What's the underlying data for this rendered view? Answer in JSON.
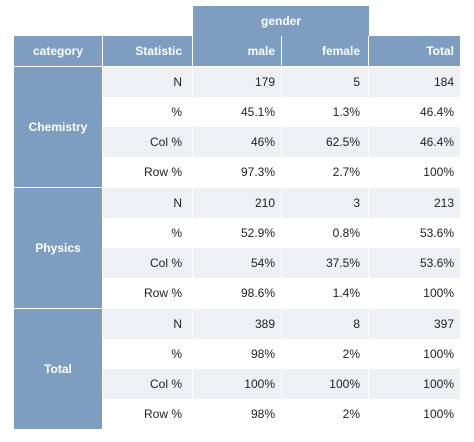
{
  "header": {
    "span_label": "gender",
    "columns": {
      "category": "category",
      "statistic": "Statistic",
      "male": "male",
      "female": "female",
      "total": "Total"
    }
  },
  "groups": [
    {
      "label": "Chemistry",
      "rows": [
        {
          "stat": "N",
          "male": "179",
          "female": "5",
          "total": "184"
        },
        {
          "stat": "%",
          "male": "45.1%",
          "female": "1.3%",
          "total": "46.4%"
        },
        {
          "stat": "Col %",
          "male": "46%",
          "female": "62.5%",
          "total": "46.4%"
        },
        {
          "stat": "Row %",
          "male": "97.3%",
          "female": "2.7%",
          "total": "100%"
        }
      ]
    },
    {
      "label": "Physics",
      "rows": [
        {
          "stat": "N",
          "male": "210",
          "female": "3",
          "total": "213"
        },
        {
          "stat": "%",
          "male": "52.9%",
          "female": "0.8%",
          "total": "53.6%"
        },
        {
          "stat": "Col %",
          "male": "54%",
          "female": "37.5%",
          "total": "53.6%"
        },
        {
          "stat": "Row %",
          "male": "98.6%",
          "female": "1.4%",
          "total": "100%"
        }
      ]
    },
    {
      "label": "Total",
      "rows": [
        {
          "stat": "N",
          "male": "389",
          "female": "8",
          "total": "397"
        },
        {
          "stat": "%",
          "male": "98%",
          "female": "2%",
          "total": "100%"
        },
        {
          "stat": "Col %",
          "male": "100%",
          "female": "100%",
          "total": "100%"
        },
        {
          "stat": "Row %",
          "male": "98%",
          "female": "2%",
          "total": "100%"
        }
      ]
    }
  ],
  "colors": {
    "header_bg": "#7d9ec0",
    "stripe_bg": "#eef0f4"
  }
}
